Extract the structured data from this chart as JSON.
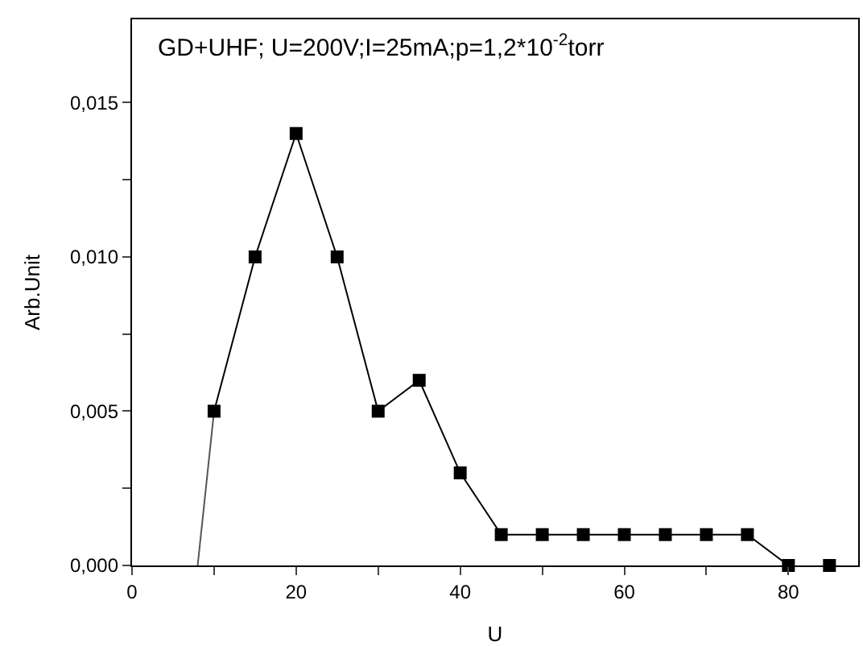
{
  "chart_data": {
    "type": "line",
    "title": "GD+UHF; U=200V;I=25mA;p=1,2*10$^{-2}$torr",
    "xlabel": "U",
    "ylabel": "Arb.Unit",
    "xlim": [
      0,
      88.5
    ],
    "ylim": [
      0,
      0.0177
    ],
    "xticks": [
      0,
      {
        "value": 10,
        "label": null
      },
      20,
      {
        "value": 30,
        "label": null
      },
      40,
      {
        "value": 50,
        "label": null
      },
      60,
      {
        "value": 70,
        "label": null
      },
      80
    ],
    "yticks": [
      {
        "value": 0,
        "label": "0,000"
      },
      {
        "value": 0.0025,
        "label": null
      },
      {
        "value": 0.005,
        "label": "0,005"
      },
      {
        "value": 0.0075,
        "label": null
      },
      {
        "value": 0.01,
        "label": "0,010"
      },
      {
        "value": 0.0125,
        "label": null
      },
      {
        "value": 0.015,
        "label": "0,015"
      }
    ],
    "legend": false,
    "series": [
      {
        "marker": "none",
        "color": "#555555",
        "x": [
          8,
          10
        ],
        "values": [
          0,
          0.005
        ]
      },
      {
        "marker": "square",
        "color": "#000000",
        "x": [
          10,
          15,
          20,
          25,
          30,
          35,
          40,
          45,
          50,
          55,
          60,
          65,
          70,
          75,
          80
        ],
        "values": [
          0.005,
          0.01,
          0.014,
          0.01,
          0.005,
          0.006,
          0.003,
          0.001,
          0.001,
          0.001,
          0.001,
          0.001,
          0.001,
          0.001,
          0
        ]
      },
      {
        "type": "scatter",
        "marker": "square",
        "color": "#000000",
        "x": [
          85
        ],
        "values": [
          0
        ]
      }
    ]
  }
}
